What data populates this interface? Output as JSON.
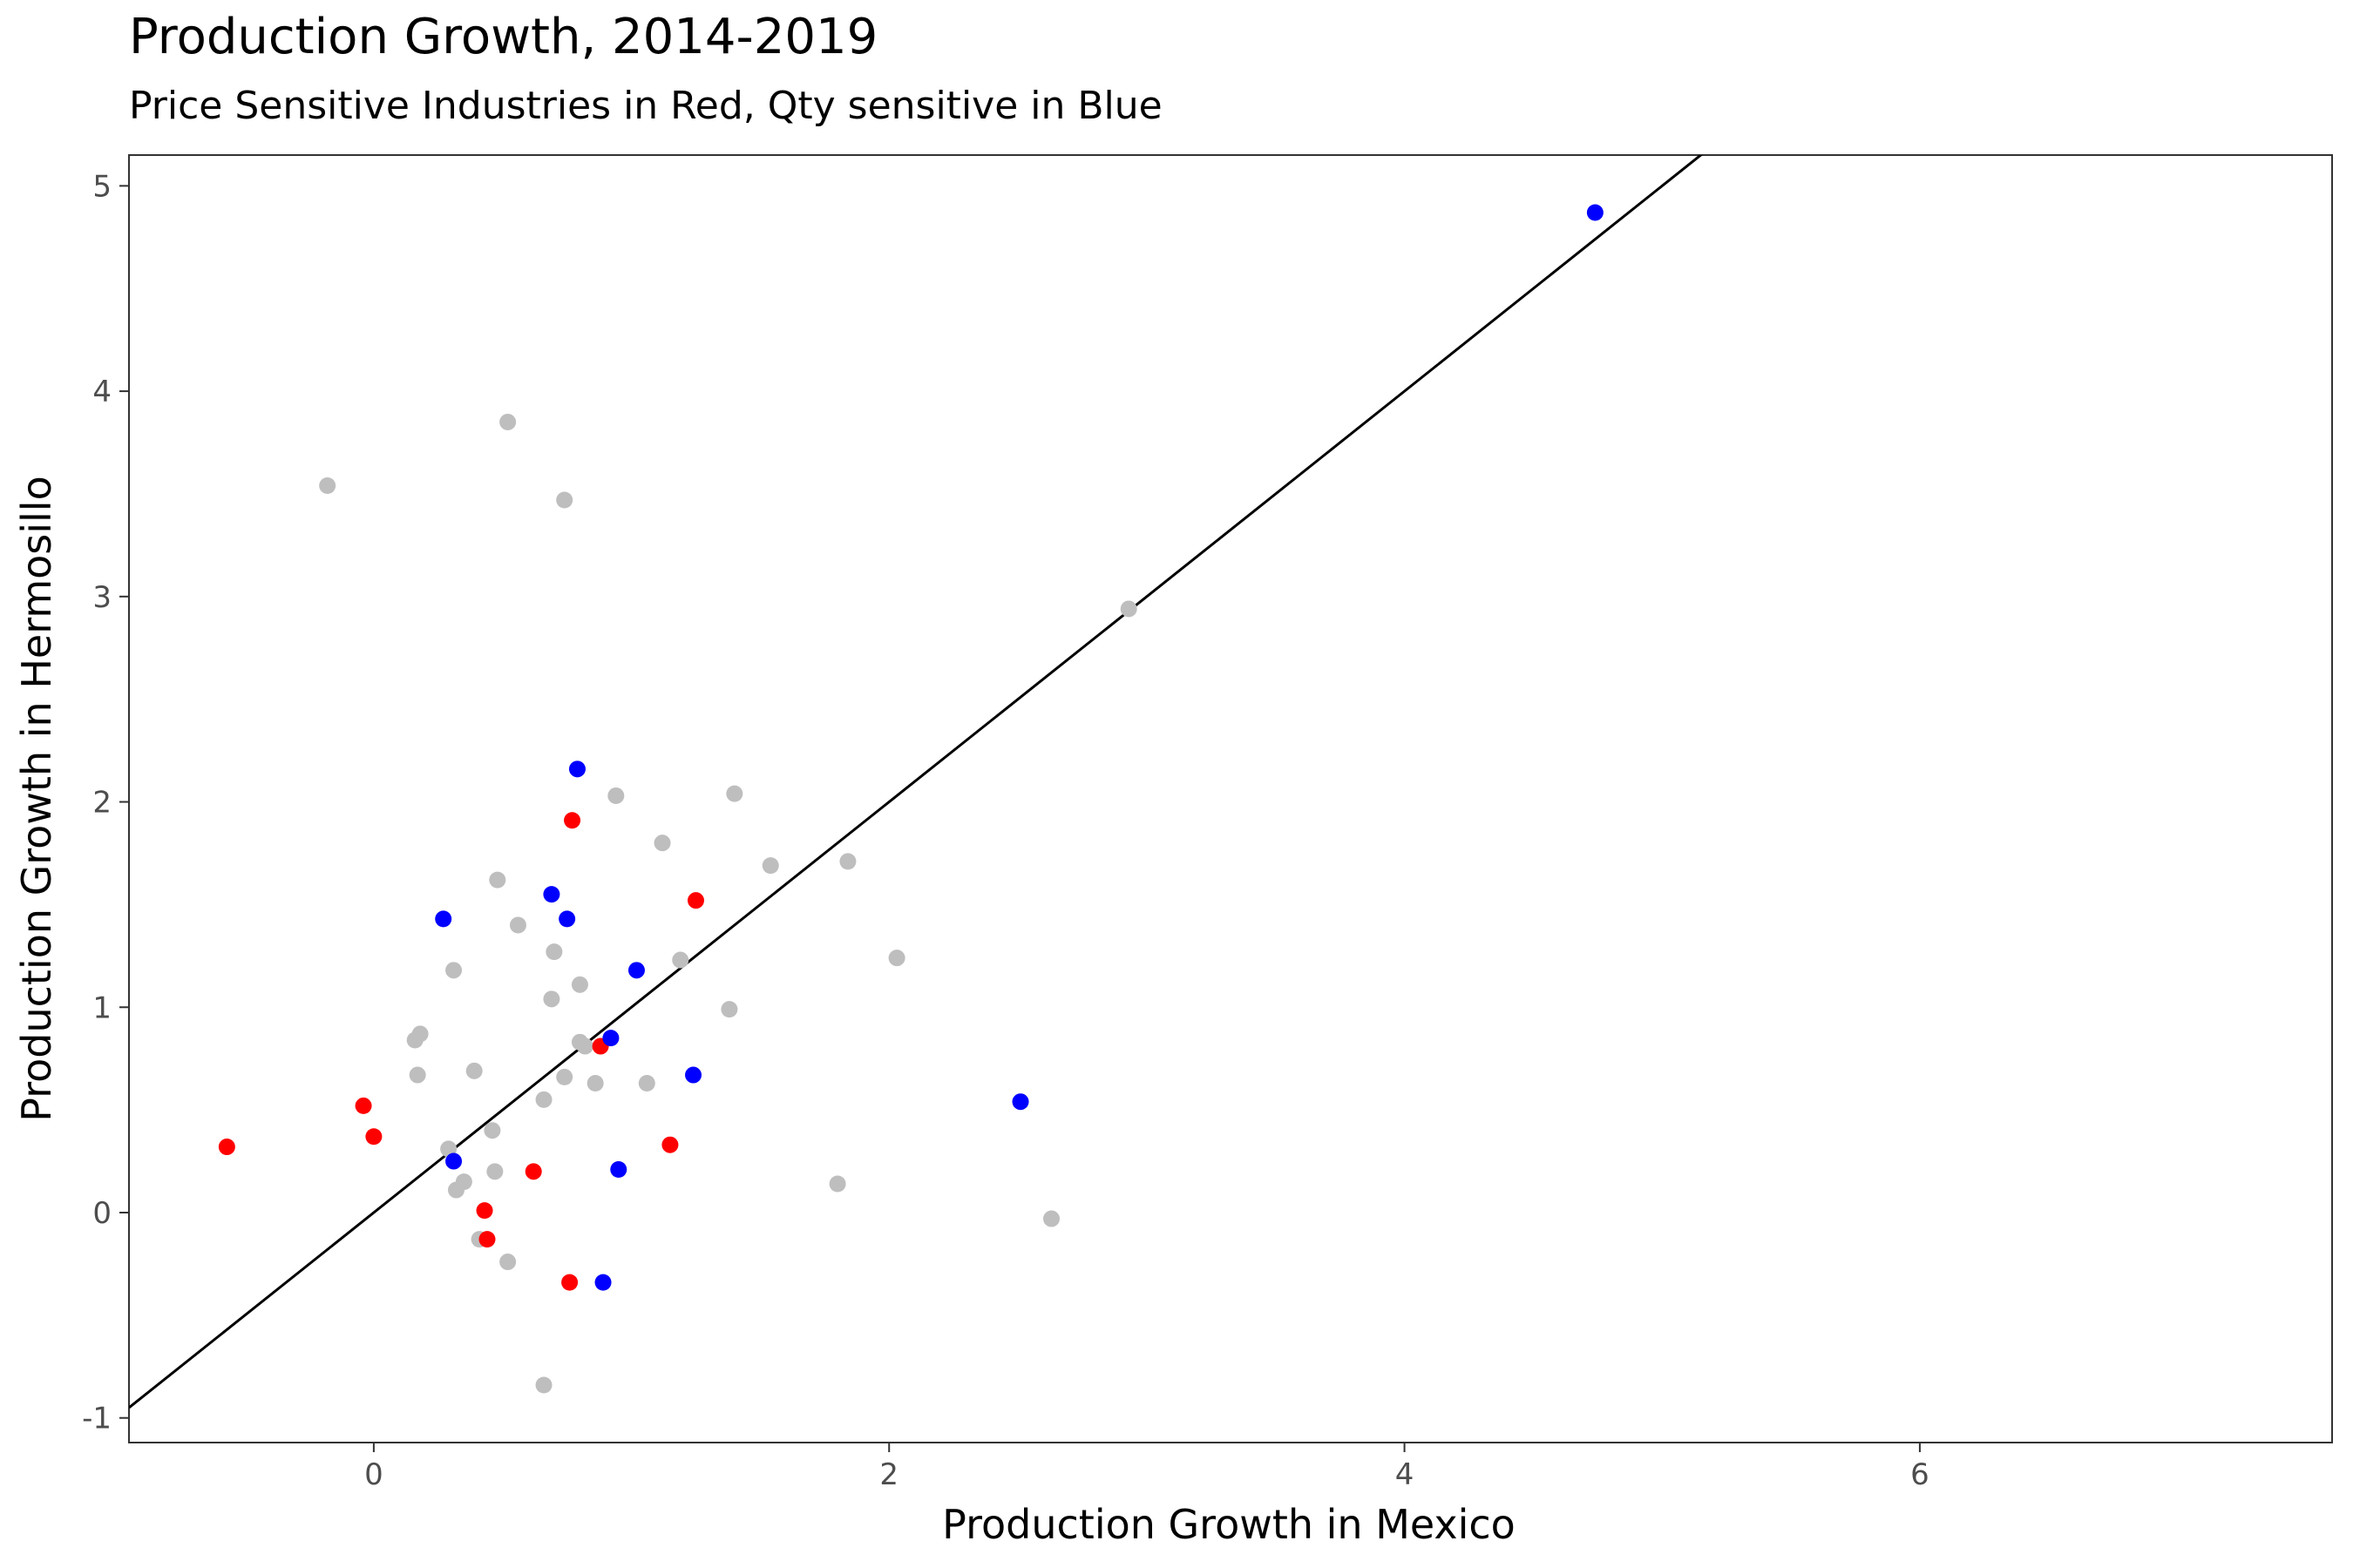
{
  "chart_data": {
    "type": "scatter",
    "title": "Production Growth, 2014-2019",
    "subtitle": "Price Sensitive Industries in Red, Qty sensitive in Blue",
    "xlabel": "Production Growth in Mexico",
    "ylabel": "Production Growth in Hermosillo",
    "xlim": [
      -0.95,
      7.6
    ],
    "ylim": [
      -1.12,
      5.15
    ],
    "xticks": [
      0,
      2,
      4,
      6
    ],
    "yticks": [
      -1,
      0,
      1,
      2,
      3,
      4,
      5
    ],
    "grid": false,
    "reference_line": {
      "slope": 1,
      "intercept": 0,
      "color": "#000000"
    },
    "colors": {
      "gray": "#bebebe",
      "red": "#ff0000",
      "blue": "#0000ff"
    },
    "series": [
      {
        "color": "#bebebe",
        "points": [
          [
            -0.18,
            3.54
          ],
          [
            0.52,
            3.85
          ],
          [
            0.74,
            3.47
          ],
          [
            2.93,
            2.94
          ],
          [
            0.94,
            2.03
          ],
          [
            1.4,
            2.04
          ],
          [
            1.12,
            1.8
          ],
          [
            1.54,
            1.69
          ],
          [
            1.84,
            1.71
          ],
          [
            0.48,
            1.62
          ],
          [
            0.56,
            1.4
          ],
          [
            0.7,
            1.27
          ],
          [
            1.19,
            1.23
          ],
          [
            2.03,
            1.24
          ],
          [
            0.31,
            1.18
          ],
          [
            0.8,
            1.11
          ],
          [
            0.69,
            1.04
          ],
          [
            1.38,
            0.99
          ],
          [
            0.16,
            0.84
          ],
          [
            0.18,
            0.87
          ],
          [
            0.8,
            0.83
          ],
          [
            0.82,
            0.81
          ],
          [
            0.39,
            0.69
          ],
          [
            0.17,
            0.67
          ],
          [
            0.74,
            0.66
          ],
          [
            0.86,
            0.63
          ],
          [
            1.06,
            0.63
          ],
          [
            0.66,
            0.55
          ],
          [
            0.46,
            0.4
          ],
          [
            0.29,
            0.31
          ],
          [
            0.47,
            0.2
          ],
          [
            0.35,
            0.15
          ],
          [
            0.32,
            0.11
          ],
          [
            1.8,
            0.14
          ],
          [
            2.63,
            -0.03
          ],
          [
            0.41,
            -0.13
          ],
          [
            0.52,
            -0.24
          ],
          [
            0.66,
            -0.84
          ]
        ]
      },
      {
        "color": "#ff0000",
        "points": [
          [
            0.77,
            1.91
          ],
          [
            1.25,
            1.52
          ],
          [
            0.88,
            0.81
          ],
          [
            -0.04,
            0.52
          ],
          [
            0.0,
            0.37
          ],
          [
            -0.57,
            0.32
          ],
          [
            1.15,
            0.33
          ],
          [
            0.62,
            0.2
          ],
          [
            0.43,
            0.01
          ],
          [
            0.44,
            -0.13
          ],
          [
            0.76,
            -0.34
          ]
        ]
      },
      {
        "color": "#0000ff",
        "points": [
          [
            4.74,
            4.87
          ],
          [
            0.79,
            2.16
          ],
          [
            0.69,
            1.55
          ],
          [
            0.27,
            1.43
          ],
          [
            0.75,
            1.43
          ],
          [
            1.02,
            1.18
          ],
          [
            0.92,
            0.85
          ],
          [
            1.24,
            0.67
          ],
          [
            2.51,
            0.54
          ],
          [
            0.31,
            0.25
          ],
          [
            0.95,
            0.21
          ],
          [
            0.89,
            -0.34
          ]
        ]
      }
    ]
  }
}
